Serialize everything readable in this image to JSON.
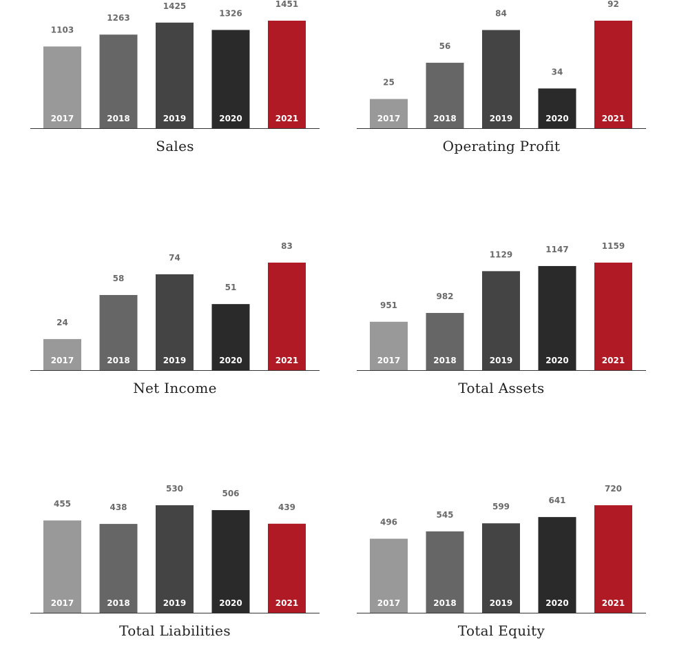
{
  "colors": {
    "bar_2017": "#999999",
    "bar_2018": "#666666",
    "bar_2019": "#444444",
    "bar_2020": "#2a2a2a",
    "bar_2021": "#b01a24",
    "baseline": "#333333"
  },
  "chart_data": [
    {
      "type": "bar",
      "title": "Sales",
      "categories": [
        "2017",
        "2018",
        "2019",
        "2020",
        "2021"
      ],
      "values": [
        1103,
        1263,
        1425,
        1326,
        1451
      ],
      "ylim": [
        0,
        1451
      ],
      "grid": false
    },
    {
      "type": "bar",
      "title": "Operating Profit",
      "categories": [
        "2017",
        "2018",
        "2019",
        "2020",
        "2021"
      ],
      "values": [
        25,
        56,
        84,
        34,
        92
      ],
      "ylim": [
        0,
        92
      ],
      "grid": false
    },
    {
      "type": "bar",
      "title": "Net Income",
      "categories": [
        "2017",
        "2018",
        "2019",
        "2020",
        "2021"
      ],
      "values": [
        24,
        58,
        74,
        51,
        83
      ],
      "ylim": [
        0,
        83
      ],
      "grid": false
    },
    {
      "type": "bar",
      "title": "Total Assets",
      "categories": [
        "2017",
        "2018",
        "2019",
        "2020",
        "2021"
      ],
      "values": [
        951,
        982,
        1129,
        1147,
        1159
      ],
      "ylim": [
        0,
        1159
      ],
      "grid": false
    },
    {
      "type": "bar",
      "title": "Total Liabilities",
      "categories": [
        "2017",
        "2018",
        "2019",
        "2020",
        "2021"
      ],
      "values": [
        455,
        438,
        530,
        506,
        439
      ],
      "ylim": [
        0,
        530
      ],
      "grid": false
    },
    {
      "type": "bar",
      "title": "Total Equity",
      "categories": [
        "2017",
        "2018",
        "2019",
        "2020",
        "2021"
      ],
      "values": [
        496,
        545,
        599,
        641,
        720
      ],
      "ylim": [
        0,
        720
      ],
      "grid": false
    }
  ]
}
